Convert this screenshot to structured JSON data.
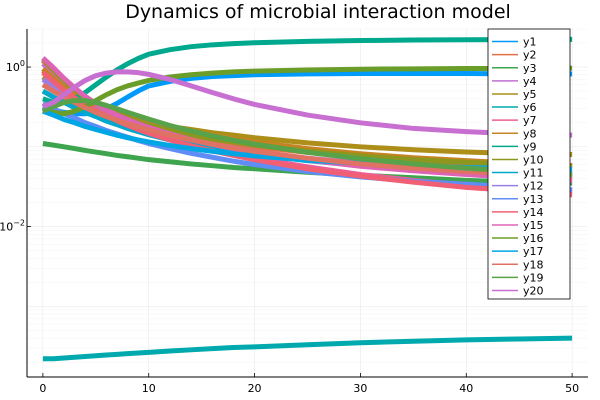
{
  "chart_data": {
    "type": "line",
    "title": "Dynamics of microbial interaction model",
    "xlabel": "",
    "ylabel": "",
    "xlim": [
      -1.5,
      51.5
    ],
    "ylim": [
      0.00013,
      3.0
    ],
    "yscale": "log",
    "xticks": [
      0,
      10,
      20,
      30,
      40,
      50
    ],
    "yticks": [
      {
        "value": 1,
        "label": "10",
        "exp": "0"
      },
      {
        "value": 0.01,
        "label": "10",
        "exp": "−2"
      }
    ],
    "grid": true,
    "legend_position": "right",
    "x": [
      0,
      1,
      2,
      3,
      4,
      5,
      6,
      7,
      8,
      9,
      10,
      12,
      14,
      16,
      18,
      20,
      25,
      30,
      35,
      40,
      45,
      50
    ],
    "series": [
      {
        "name": "y1",
        "color": "#009AFA",
        "values": [
          0.32,
          0.29,
          0.27,
          0.26,
          0.26,
          0.27,
          0.3,
          0.35,
          0.42,
          0.5,
          0.58,
          0.66,
          0.72,
          0.76,
          0.78,
          0.8,
          0.82,
          0.83,
          0.83,
          0.83,
          0.82,
          0.82
        ]
      },
      {
        "name": "y2",
        "color": "#E36F47",
        "values": [
          0.9,
          0.68,
          0.52,
          0.42,
          0.35,
          0.3,
          0.26,
          0.23,
          0.21,
          0.19,
          0.17,
          0.15,
          0.13,
          0.12,
          0.11,
          0.1,
          0.085,
          0.075,
          0.068,
          0.063,
          0.06,
          0.058
        ]
      },
      {
        "name": "y3",
        "color": "#3EA44E",
        "values": [
          0.11,
          0.105,
          0.1,
          0.095,
          0.09,
          0.086,
          0.082,
          0.078,
          0.075,
          0.072,
          0.069,
          0.065,
          0.061,
          0.058,
          0.055,
          0.053,
          0.048,
          0.044,
          0.041,
          0.038,
          0.036,
          0.035
        ]
      },
      {
        "name": "y4",
        "color": "#C271D2",
        "values": [
          1.1,
          0.85,
          0.62,
          0.48,
          0.38,
          0.3,
          0.25,
          0.21,
          0.18,
          0.16,
          0.145,
          0.125,
          0.11,
          0.1,
          0.092,
          0.085,
          0.072,
          0.063,
          0.057,
          0.052,
          0.048,
          0.045
        ]
      },
      {
        "name": "y5",
        "color": "#AC8E18",
        "values": [
          0.75,
          0.6,
          0.48,
          0.4,
          0.34,
          0.3,
          0.27,
          0.25,
          0.23,
          0.21,
          0.2,
          0.18,
          0.165,
          0.15,
          0.14,
          0.13,
          0.112,
          0.1,
          0.092,
          0.086,
          0.082,
          0.08
        ]
      },
      {
        "name": "y6",
        "color": "#00A9AD",
        "values": [
          0.00022,
          0.00022,
          0.000225,
          0.00023,
          0.000235,
          0.00024,
          0.000245,
          0.00025,
          0.000255,
          0.00026,
          0.000265,
          0.000275,
          0.000285,
          0.000295,
          0.000305,
          0.00031,
          0.00033,
          0.00035,
          0.000365,
          0.00038,
          0.00039,
          0.0004
        ]
      },
      {
        "name": "y7",
        "color": "#ED5E93",
        "values": [
          1.2,
          0.9,
          0.66,
          0.5,
          0.39,
          0.31,
          0.26,
          0.22,
          0.19,
          0.17,
          0.15,
          0.125,
          0.105,
          0.092,
          0.08,
          0.072,
          0.056,
          0.045,
          0.038,
          0.033,
          0.03,
          0.027
        ]
      },
      {
        "name": "y8",
        "color": "#C68324",
        "values": [
          0.95,
          0.72,
          0.55,
          0.45,
          0.38,
          0.33,
          0.29,
          0.26,
          0.24,
          0.22,
          0.2,
          0.175,
          0.155,
          0.14,
          0.125,
          0.115,
          0.095,
          0.082,
          0.073,
          0.067,
          0.062,
          0.058
        ]
      },
      {
        "name": "y9",
        "color": "#00A98D",
        "values": [
          0.4,
          0.36,
          0.36,
          0.4,
          0.48,
          0.6,
          0.75,
          0.92,
          1.1,
          1.28,
          1.45,
          1.65,
          1.8,
          1.9,
          1.97,
          2.02,
          2.1,
          2.15,
          2.18,
          2.2,
          2.21,
          2.22
        ]
      },
      {
        "name": "y10",
        "color": "#8E971D",
        "values": [
          1.25,
          0.92,
          0.68,
          0.52,
          0.42,
          0.35,
          0.3,
          0.26,
          0.23,
          0.205,
          0.185,
          0.16,
          0.14,
          0.125,
          0.115,
          0.105,
          0.088,
          0.077,
          0.069,
          0.064,
          0.06,
          0.057
        ]
      },
      {
        "name": "y11",
        "color": "#00A8CB",
        "values": [
          0.5,
          0.42,
          0.36,
          0.31,
          0.27,
          0.24,
          0.21,
          0.19,
          0.17,
          0.155,
          0.142,
          0.122,
          0.107,
          0.096,
          0.087,
          0.08,
          0.067,
          0.058,
          0.052,
          0.048,
          0.045,
          0.043
        ]
      },
      {
        "name": "y12",
        "color": "#9B7FE8",
        "values": [
          0.7,
          0.57,
          0.47,
          0.39,
          0.33,
          0.29,
          0.25,
          0.22,
          0.2,
          0.18,
          0.165,
          0.14,
          0.122,
          0.108,
          0.097,
          0.088,
          0.071,
          0.06,
          0.052,
          0.046,
          0.042,
          0.039
        ]
      },
      {
        "name": "y13",
        "color": "#608CF6",
        "values": [
          0.35,
          0.3,
          0.26,
          0.23,
          0.2,
          0.18,
          0.16,
          0.145,
          0.132,
          0.12,
          0.11,
          0.095,
          0.083,
          0.074,
          0.066,
          0.06,
          0.049,
          0.042,
          0.037,
          0.034,
          0.031,
          0.029
        ]
      },
      {
        "name": "y14",
        "color": "#F05F73",
        "values": [
          0.85,
          0.66,
          0.51,
          0.41,
          0.34,
          0.285,
          0.245,
          0.212,
          0.186,
          0.165,
          0.148,
          0.122,
          0.103,
          0.089,
          0.078,
          0.069,
          0.053,
          0.043,
          0.036,
          0.031,
          0.028,
          0.025
        ]
      },
      {
        "name": "y15",
        "color": "#DD64B5",
        "values": [
          1.3,
          0.98,
          0.72,
          0.55,
          0.43,
          0.35,
          0.29,
          0.25,
          0.22,
          0.195,
          0.175,
          0.145,
          0.123,
          0.107,
          0.095,
          0.085,
          0.068,
          0.057,
          0.05,
          0.045,
          0.041,
          0.038
        ]
      },
      {
        "name": "y16",
        "color": "#6B9D29",
        "values": [
          0.3,
          0.27,
          0.26,
          0.28,
          0.32,
          0.38,
          0.45,
          0.52,
          0.58,
          0.63,
          0.68,
          0.75,
          0.8,
          0.84,
          0.87,
          0.89,
          0.92,
          0.94,
          0.95,
          0.96,
          0.96,
          0.97
        ]
      },
      {
        "name": "y17",
        "color": "#00A6E4",
        "values": [
          0.28,
          0.25,
          0.22,
          0.2,
          0.18,
          0.165,
          0.152,
          0.14,
          0.13,
          0.122,
          0.115,
          0.104,
          0.095,
          0.088,
          0.082,
          0.077,
          0.068,
          0.062,
          0.058,
          0.055,
          0.053,
          0.052
        ]
      },
      {
        "name": "y18",
        "color": "#E07264",
        "values": [
          0.6,
          0.5,
          0.42,
          0.36,
          0.31,
          0.27,
          0.24,
          0.215,
          0.195,
          0.178,
          0.163,
          0.14,
          0.122,
          0.108,
          0.097,
          0.088,
          0.072,
          0.061,
          0.054,
          0.049,
          0.045,
          0.042
        ]
      },
      {
        "name": "y19",
        "color": "#58A249",
        "values": [
          0.28,
          0.32,
          0.36,
          0.38,
          0.38,
          0.36,
          0.33,
          0.3,
          0.27,
          0.245,
          0.222,
          0.185,
          0.158,
          0.137,
          0.121,
          0.108,
          0.085,
          0.071,
          0.061,
          0.054,
          0.049,
          0.045
        ]
      },
      {
        "name": "y20",
        "color": "#C86FD2",
        "values": [
          0.32,
          0.36,
          0.45,
          0.56,
          0.68,
          0.78,
          0.84,
          0.87,
          0.87,
          0.85,
          0.81,
          0.7,
          0.58,
          0.48,
          0.4,
          0.34,
          0.25,
          0.2,
          0.17,
          0.155,
          0.145,
          0.14
        ]
      }
    ]
  }
}
